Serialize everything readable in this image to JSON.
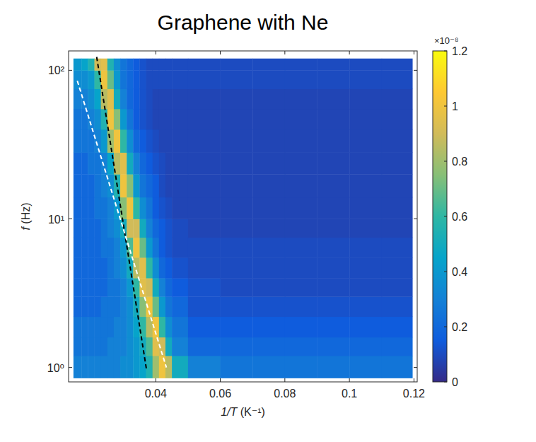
{
  "chart_data": {
    "type": "heatmap",
    "title": "Graphene with Ne",
    "x_label": "1/T (K⁻¹)",
    "y_label": "f (Hz)",
    "log": "y",
    "xlim": [
      0.013,
      0.121
    ],
    "ylim": [
      0.8,
      135
    ],
    "xticks": [
      0.04,
      0.06,
      0.08,
      0.1,
      0.12
    ],
    "yticks": [
      {
        "value": 1,
        "label": "10⁰"
      },
      {
        "value": 10,
        "label": "10¹"
      },
      {
        "value": 100,
        "label": "10²"
      }
    ],
    "x_edges": [
      0.0145,
      0.017,
      0.019,
      0.021,
      0.023,
      0.025,
      0.027,
      0.029,
      0.031,
      0.033,
      0.035,
      0.037,
      0.039,
      0.041,
      0.043,
      0.045,
      0.05,
      0.06,
      0.07,
      0.08,
      0.09,
      0.1,
      0.11,
      0.1195
    ],
    "y_edges": [
      0.85,
      1.2,
      1.6,
      2.2,
      3,
      4,
      5.5,
      7.5,
      10,
      14,
      20,
      28,
      40,
      55,
      75,
      100,
      120
    ],
    "cells": [
      [
        0.3,
        0.3,
        0.3,
        0.3,
        0.3,
        0.3,
        0.3,
        0.35,
        0.35,
        0.4,
        0.45,
        0.55,
        0.8,
        1.0,
        0.85,
        0.5,
        0.3,
        0.25,
        0.25,
        0.25,
        0.25,
        0.25,
        0.25
      ],
      [
        0.25,
        0.25,
        0.25,
        0.25,
        0.25,
        0.3,
        0.3,
        0.3,
        0.35,
        0.4,
        0.5,
        0.65,
        0.95,
        0.9,
        0.5,
        0.3,
        0.2,
        0.2,
        0.2,
        0.2,
        0.2,
        0.2,
        0.2
      ],
      [
        0.25,
        0.25,
        0.25,
        0.25,
        0.25,
        0.25,
        0.3,
        0.3,
        0.35,
        0.45,
        0.6,
        0.85,
        1.0,
        0.6,
        0.35,
        0.25,
        0.15,
        0.15,
        0.15,
        0.15,
        0.15,
        0.15,
        0.15
      ],
      [
        0.2,
        0.2,
        0.2,
        0.2,
        0.25,
        0.25,
        0.25,
        0.3,
        0.35,
        0.5,
        0.75,
        1.0,
        0.7,
        0.4,
        0.25,
        0.2,
        0.12,
        0.12,
        0.12,
        0.12,
        0.12,
        0.12,
        0.12
      ],
      [
        0.2,
        0.2,
        0.2,
        0.2,
        0.2,
        0.25,
        0.25,
        0.3,
        0.4,
        0.6,
        0.95,
        0.9,
        0.5,
        0.3,
        0.2,
        0.15,
        0.12,
        0.1,
        0.1,
        0.1,
        0.1,
        0.1,
        0.1
      ],
      [
        0.2,
        0.2,
        0.2,
        0.2,
        0.2,
        0.25,
        0.3,
        0.35,
        0.5,
        0.85,
        0.95,
        0.6,
        0.35,
        0.2,
        0.15,
        0.12,
        0.1,
        0.1,
        0.1,
        0.1,
        0.1,
        0.1,
        0.1
      ],
      [
        0.2,
        0.2,
        0.2,
        0.2,
        0.25,
        0.25,
        0.3,
        0.4,
        0.65,
        1.0,
        0.7,
        0.4,
        0.25,
        0.15,
        0.12,
        0.1,
        0.1,
        0.1,
        0.1,
        0.1,
        0.1,
        0.1,
        0.1
      ],
      [
        0.2,
        0.2,
        0.2,
        0.2,
        0.25,
        0.3,
        0.35,
        0.5,
        0.9,
        0.9,
        0.5,
        0.3,
        0.2,
        0.15,
        0.12,
        0.1,
        0.08,
        0.08,
        0.08,
        0.08,
        0.08,
        0.08,
        0.08
      ],
      [
        0.2,
        0.2,
        0.2,
        0.25,
        0.25,
        0.3,
        0.4,
        0.75,
        1.0,
        0.6,
        0.35,
        0.25,
        0.15,
        0.12,
        0.1,
        0.08,
        0.08,
        0.08,
        0.08,
        0.08,
        0.08,
        0.08,
        0.08
      ],
      [
        0.2,
        0.2,
        0.2,
        0.25,
        0.3,
        0.35,
        0.55,
        1.0,
        0.75,
        0.4,
        0.25,
        0.2,
        0.15,
        0.1,
        0.08,
        0.08,
        0.08,
        0.08,
        0.08,
        0.08,
        0.08,
        0.08,
        0.08
      ],
      [
        0.2,
        0.2,
        0.25,
        0.25,
        0.3,
        0.45,
        0.85,
        0.95,
        0.5,
        0.3,
        0.2,
        0.15,
        0.12,
        0.1,
        0.08,
        0.08,
        0.08,
        0.08,
        0.08,
        0.08,
        0.08,
        0.08,
        0.08
      ],
      [
        0.25,
        0.25,
        0.25,
        0.3,
        0.4,
        0.8,
        1.0,
        0.6,
        0.35,
        0.2,
        0.15,
        0.12,
        0.1,
        0.08,
        0.08,
        0.08,
        0.08,
        0.08,
        0.08,
        0.08,
        0.08,
        0.08,
        0.08
      ],
      [
        0.25,
        0.25,
        0.3,
        0.35,
        0.55,
        1.0,
        0.75,
        0.4,
        0.25,
        0.15,
        0.12,
        0.1,
        0.08,
        0.08,
        0.08,
        0.08,
        0.08,
        0.08,
        0.08,
        0.08,
        0.08,
        0.08,
        0.08
      ],
      [
        0.3,
        0.3,
        0.35,
        0.45,
        0.85,
        0.95,
        0.5,
        0.3,
        0.2,
        0.15,
        0.12,
        0.1,
        0.08,
        0.08,
        0.08,
        0.08,
        0.08,
        0.08,
        0.08,
        0.08,
        0.08,
        0.08,
        0.08
      ],
      [
        0.35,
        0.35,
        0.4,
        0.6,
        1.0,
        0.7,
        0.4,
        0.25,
        0.2,
        0.15,
        0.12,
        0.1,
        0.1,
        0.1,
        0.1,
        0.1,
        0.1,
        0.1,
        0.1,
        0.1,
        0.1,
        0.1,
        0.1
      ],
      [
        0.4,
        0.45,
        0.55,
        0.9,
        0.95,
        0.55,
        0.35,
        0.25,
        0.2,
        0.15,
        0.12,
        0.1,
        0.1,
        0.1,
        0.1,
        0.1,
        0.1,
        0.1,
        0.1,
        0.1,
        0.1,
        0.1,
        0.1
      ]
    ],
    "colorbar": {
      "lim": [
        0,
        1.2
      ],
      "ticks": [
        0,
        0.2,
        0.4,
        0.6,
        0.8,
        1,
        1.2
      ],
      "multiplier": "×10⁻⁸"
    },
    "series": [
      {
        "type": "line",
        "x": [
          0.0217,
          0.0372
        ],
        "values": [
          123,
          0.95
        ],
        "color": "#000000",
        "line_style": "dashed"
      },
      {
        "type": "line",
        "x": [
          0.0157,
          0.0433
        ],
        "values": [
          85,
          1.0
        ],
        "color": "#ffffff",
        "line_style": "dashed"
      }
    ]
  }
}
